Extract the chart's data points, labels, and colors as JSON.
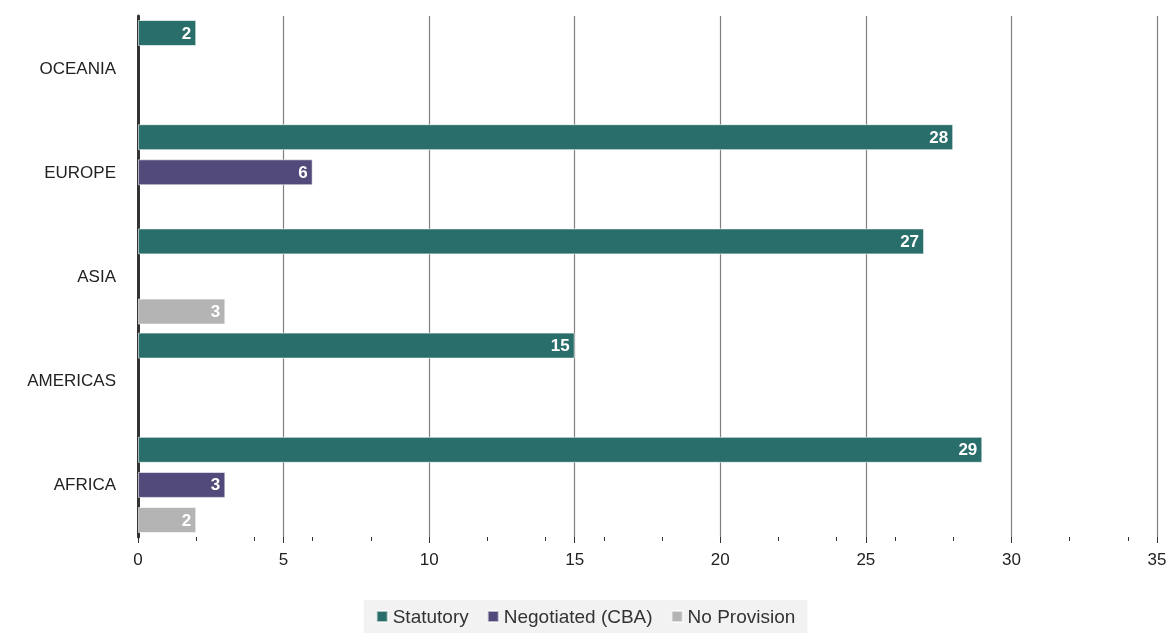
{
  "chart_data": {
    "type": "bar",
    "orientation": "horizontal",
    "categories": [
      "OCEANIA",
      "EUROPE",
      "ASIA",
      "AMERICAS",
      "AFRICA"
    ],
    "series": [
      {
        "name": "Statutory",
        "color": "#2a6e6b",
        "values": [
          2,
          28,
          27,
          15,
          29
        ]
      },
      {
        "name": "Negotiated (CBA)",
        "color": "#514a7a",
        "values": [
          null,
          6,
          null,
          null,
          3
        ]
      },
      {
        "name": "No Provision",
        "color": "#b4b4b4",
        "values": [
          null,
          null,
          3,
          null,
          2
        ]
      }
    ],
    "xlim": [
      0,
      35
    ],
    "xticks": [
      0,
      5,
      10,
      15,
      20,
      25,
      30,
      35
    ],
    "grid": "x",
    "legend": "bottom",
    "data_labels": true
  }
}
